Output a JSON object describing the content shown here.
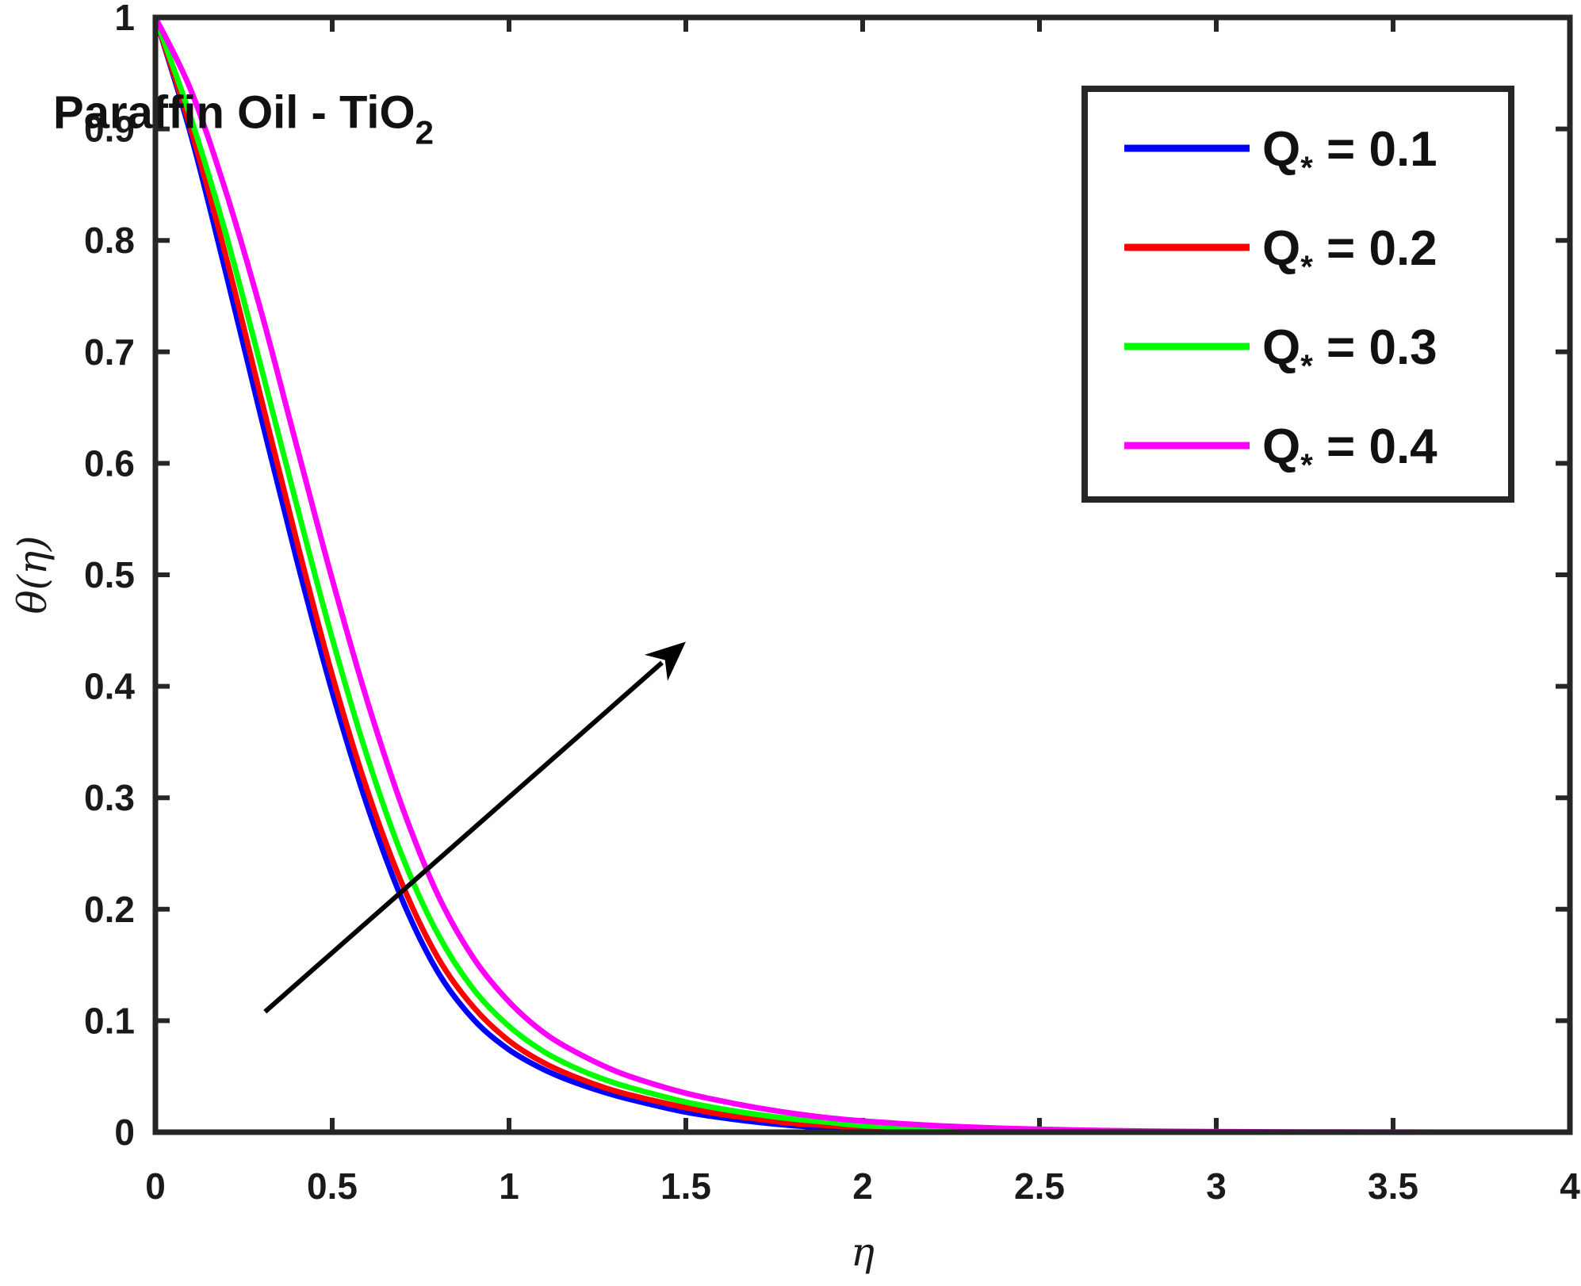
{
  "chart_data": {
    "type": "line",
    "title": "",
    "xlabel": "η",
    "ylabel": "θ(η)",
    "xlim": [
      0,
      4
    ],
    "ylim": [
      0,
      1
    ],
    "xticks": [
      0,
      0.5,
      1,
      1.5,
      2,
      2.5,
      3,
      3.5,
      4
    ],
    "yticks": [
      0,
      0.1,
      0.2,
      0.3,
      0.4,
      0.5,
      0.6,
      0.7,
      0.8,
      0.9,
      1
    ],
    "xtick_labels": [
      "0",
      "0.5",
      "1",
      "1.5",
      "2",
      "2.5",
      "3",
      "3.5",
      "4"
    ],
    "ytick_labels": [
      "0",
      "0.1",
      "0.2",
      "0.3",
      "0.4",
      "0.5",
      "0.6",
      "0.7",
      "0.8",
      "0.9",
      "1"
    ],
    "grid": false,
    "legend_position": "top-right",
    "annotation": {
      "text": "Paraffin Oil - TiO",
      "subscript": "2",
      "x": 0.37,
      "y": 0.915
    },
    "arrow": {
      "from": [
        0.31,
        0.108
      ],
      "to": [
        1.5,
        0.44
      ],
      "color": "#000000"
    },
    "x": [
      0,
      0.1,
      0.2,
      0.3,
      0.4,
      0.5,
      0.6,
      0.7,
      0.8,
      0.9,
      1.0,
      1.1,
      1.2,
      1.3,
      1.4,
      1.5,
      1.6,
      1.7,
      1.8,
      1.9,
      2.0,
      2.2,
      2.4,
      2.6,
      2.8,
      3.0,
      3.25,
      3.5,
      3.75,
      4.0
    ],
    "series": [
      {
        "name": "Q",
        "name_sub": "*",
        "value_label": " = 0.1",
        "color": "#0000ff",
        "values": [
          1.0,
          0.895,
          0.77,
          0.64,
          0.513,
          0.395,
          0.292,
          0.207,
          0.143,
          0.101,
          0.074,
          0.056,
          0.043,
          0.033,
          0.025,
          0.018,
          0.013,
          0.009,
          0.006,
          0.004,
          0.003,
          0.0015,
          0.0008,
          0.0004,
          0.0002,
          0.0001,
          0.0,
          0.0,
          0.0,
          0.0
        ]
      },
      {
        "name": "Q",
        "name_sub": "*",
        "value_label": " = 0.2",
        "color": "#ff0000",
        "values": [
          1.0,
          0.9,
          0.785,
          0.657,
          0.53,
          0.41,
          0.306,
          0.221,
          0.156,
          0.112,
          0.082,
          0.062,
          0.048,
          0.037,
          0.029,
          0.022,
          0.016,
          0.012,
          0.008,
          0.006,
          0.004,
          0.0022,
          0.0012,
          0.0006,
          0.0003,
          0.0001,
          0.0,
          0.0,
          0.0,
          0.0
        ]
      },
      {
        "name": "Q",
        "name_sub": "*",
        "value_label": " = 0.3",
        "color": "#00ff00",
        "values": [
          1.0,
          0.91,
          0.805,
          0.685,
          0.562,
          0.443,
          0.336,
          0.246,
          0.177,
          0.128,
          0.095,
          0.072,
          0.056,
          0.044,
          0.035,
          0.027,
          0.021,
          0.016,
          0.012,
          0.009,
          0.006,
          0.0035,
          0.002,
          0.001,
          0.0005,
          0.0002,
          0.0001,
          0.0,
          0.0,
          0.0
        ]
      },
      {
        "name": "Q",
        "name_sub": "*",
        "value_label": " = 0.4",
        "color": "#ff00ff",
        "values": [
          1.0,
          0.935,
          0.843,
          0.735,
          0.615,
          0.496,
          0.386,
          0.29,
          0.212,
          0.156,
          0.117,
          0.089,
          0.07,
          0.055,
          0.044,
          0.035,
          0.028,
          0.022,
          0.017,
          0.013,
          0.01,
          0.006,
          0.0035,
          0.002,
          0.001,
          0.0005,
          0.0002,
          0.0001,
          0.0,
          0.0
        ]
      }
    ]
  }
}
